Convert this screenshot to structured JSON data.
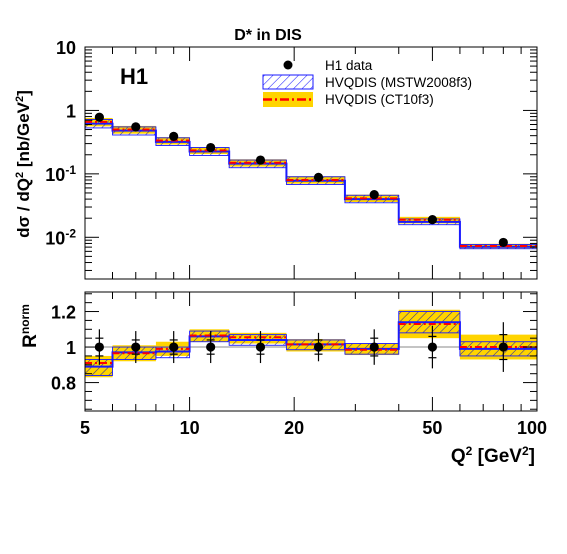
{
  "chart_data": [
    {
      "type": "line",
      "title": "D* in DIS",
      "experiment_label": "H1",
      "ylabel_parts": [
        "dσ / dQ",
        "2",
        " [nb/GeV",
        "2",
        "]"
      ],
      "yscale": "log",
      "ylim": [
        0.0022,
        10
      ],
      "yticks": [
        {
          "value": 10,
          "base": "10",
          "exp": ""
        },
        {
          "value": 1,
          "base": "1",
          "exp": ""
        },
        {
          "value": 0.1,
          "base": "10",
          "exp": "-1"
        },
        {
          "value": 0.01,
          "base": "10",
          "exp": "-2"
        }
      ],
      "legend": {
        "placement": "top-right",
        "entries": [
          {
            "label": "H1 data",
            "style": "marker"
          },
          {
            "label": "HVQDIS (MSTW2008f3)",
            "style": "hatched-band"
          },
          {
            "label": "HVQDIS (CT10f3)",
            "style": "yellow-band-dashdot"
          }
        ]
      },
      "bins": [
        {
          "lo": 5,
          "hi": 6
        },
        {
          "lo": 6,
          "hi": 8
        },
        {
          "lo": 8,
          "hi": 10
        },
        {
          "lo": 10,
          "hi": 13
        },
        {
          "lo": 13,
          "hi": 19
        },
        {
          "lo": 19,
          "hi": 28
        },
        {
          "lo": 28,
          "hi": 40
        },
        {
          "lo": 40,
          "hi": 60
        },
        {
          "lo": 60,
          "hi": 100
        }
      ],
      "series": [
        {
          "name": "H1 data",
          "x": [
            5.5,
            7,
            9,
            11.5,
            16,
            23.5,
            34,
            50,
            80
          ],
          "y": [
            0.78,
            0.55,
            0.39,
            0.26,
            0.165,
            0.088,
            0.047,
            0.019,
            0.0083
          ]
        },
        {
          "name": "HVQDIS (MSTW2008f3)",
          "central": [
            0.62,
            0.48,
            0.32,
            0.225,
            0.145,
            0.078,
            0.04,
            0.0175,
            0.0071
          ],
          "low": [
            0.53,
            0.41,
            0.28,
            0.195,
            0.125,
            0.068,
            0.035,
            0.0158,
            0.0066
          ],
          "high": [
            0.72,
            0.55,
            0.37,
            0.26,
            0.165,
            0.09,
            0.046,
            0.0195,
            0.0077
          ]
        },
        {
          "name": "HVQDIS (CT10f3)",
          "central": [
            0.66,
            0.5,
            0.335,
            0.235,
            0.15,
            0.08,
            0.041,
            0.019,
            0.0073
          ],
          "low": [
            0.56,
            0.43,
            0.29,
            0.205,
            0.13,
            0.07,
            0.036,
            0.0165,
            0.0067
          ],
          "high": [
            0.76,
            0.57,
            0.38,
            0.265,
            0.17,
            0.092,
            0.047,
            0.021,
            0.0079
          ]
        }
      ]
    },
    {
      "type": "line",
      "ylabel_parts": [
        "R",
        "norm"
      ],
      "ylim": [
        0.64,
        1.31
      ],
      "yticks": [
        {
          "value": 0.8,
          "label": "0.8"
        },
        {
          "value": 1,
          "label": "1"
        },
        {
          "value": 1.2,
          "label": "1.2"
        }
      ],
      "xlabel_parts": [
        "Q",
        "2",
        " [GeV",
        "2",
        "]"
      ],
      "xscale": "log",
      "xlim": [
        5,
        100
      ],
      "xticks": [
        {
          "value": 5,
          "label": "5"
        },
        {
          "value": 10,
          "label": "10"
        },
        {
          "value": 20,
          "label": "20"
        },
        {
          "value": 50,
          "label": "50"
        },
        {
          "value": 100,
          "label": "100"
        }
      ],
      "bins": [
        {
          "lo": 5,
          "hi": 6
        },
        {
          "lo": 6,
          "hi": 8
        },
        {
          "lo": 8,
          "hi": 10
        },
        {
          "lo": 10,
          "hi": 13
        },
        {
          "lo": 13,
          "hi": 19
        },
        {
          "lo": 19,
          "hi": 28
        },
        {
          "lo": 28,
          "hi": 40
        },
        {
          "lo": 40,
          "hi": 60
        },
        {
          "lo": 60,
          "hi": 100
        }
      ],
      "series": [
        {
          "name": "H1 data",
          "x": [
            5.5,
            7,
            9,
            11.5,
            16,
            23.5,
            34,
            50,
            80
          ],
          "y": [
            1,
            1,
            1,
            1,
            1,
            1,
            1,
            1,
            1
          ],
          "err_stat": [
            0.05,
            0.04,
            0.04,
            0.04,
            0.04,
            0.04,
            0.05,
            0.06,
            0.07
          ],
          "err_tot": [
            0.1,
            0.09,
            0.09,
            0.09,
            0.09,
            0.08,
            0.1,
            0.12,
            0.14
          ]
        },
        {
          "name": "HVQDIS (MSTW2008f3)",
          "central": [
            0.89,
            0.97,
            0.975,
            1.06,
            1.04,
            1.015,
            0.99,
            1.14,
            0.99
          ],
          "low": [
            0.84,
            0.93,
            0.94,
            1.03,
            1.01,
            0.985,
            0.96,
            1.08,
            0.95
          ],
          "high": [
            0.93,
            1.0,
            1.0,
            1.09,
            1.07,
            1.04,
            1.02,
            1.2,
            1.03
          ]
        },
        {
          "name": "HVQDIS (CT10f3)",
          "central": [
            0.91,
            0.965,
            0.99,
            1.065,
            1.055,
            1.015,
            0.985,
            1.13,
            1.0
          ],
          "low": [
            0.83,
            0.92,
            0.95,
            1.03,
            1.02,
            0.975,
            0.955,
            1.05,
            0.93
          ],
          "high": [
            0.95,
            1.01,
            1.03,
            1.1,
            1.08,
            1.045,
            1.02,
            1.21,
            1.07
          ]
        }
      ]
    }
  ]
}
